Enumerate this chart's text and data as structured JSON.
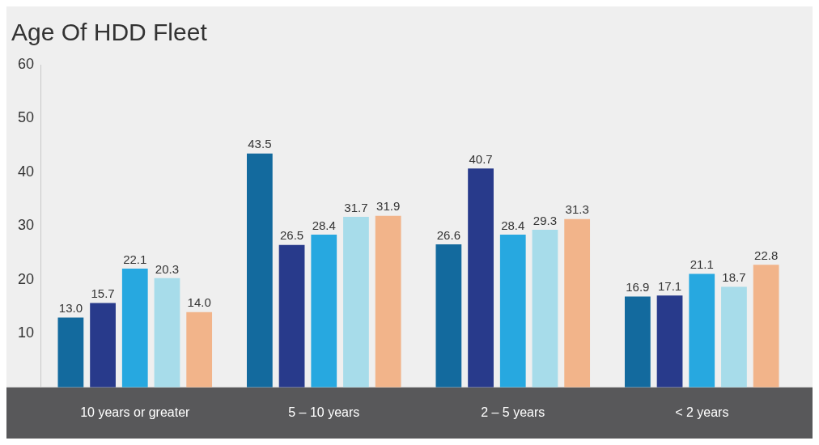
{
  "chart_data": {
    "type": "bar",
    "title": "Age Of HDD Fleet",
    "categories": [
      "10 years or greater",
      "5 – 10 years",
      "2 – 5 years",
      "< 2 years"
    ],
    "series": [
      {
        "color": "#136a9e",
        "values": [
          13.0,
          43.5,
          26.6,
          16.9
        ],
        "value_labels": [
          "13.0",
          "43.5",
          "26.6",
          "16.9"
        ]
      },
      {
        "color": "#283a8b",
        "values": [
          15.7,
          26.5,
          40.7,
          17.1
        ],
        "value_labels": [
          "15.7",
          "26.5",
          "40.7",
          "17.1"
        ]
      },
      {
        "color": "#27a8e0",
        "values": [
          22.1,
          28.4,
          28.4,
          21.1
        ],
        "value_labels": [
          "22.1",
          "28.4",
          "28.4",
          "21.1"
        ]
      },
      {
        "color": "#a7dcea",
        "values": [
          20.3,
          31.7,
          29.3,
          18.7
        ],
        "value_labels": [
          "20.3",
          "31.7",
          "29.3",
          "18.7"
        ]
      },
      {
        "color": "#f2b48a",
        "values": [
          14.0,
          31.9,
          31.3,
          22.8
        ],
        "value_labels": [
          "14.0",
          "31.9",
          "31.3",
          "22.8"
        ]
      }
    ],
    "ylim": [
      0,
      60
    ],
    "yticks": [
      10,
      20,
      30,
      40,
      50,
      60
    ],
    "grid": false,
    "legend": false
  }
}
